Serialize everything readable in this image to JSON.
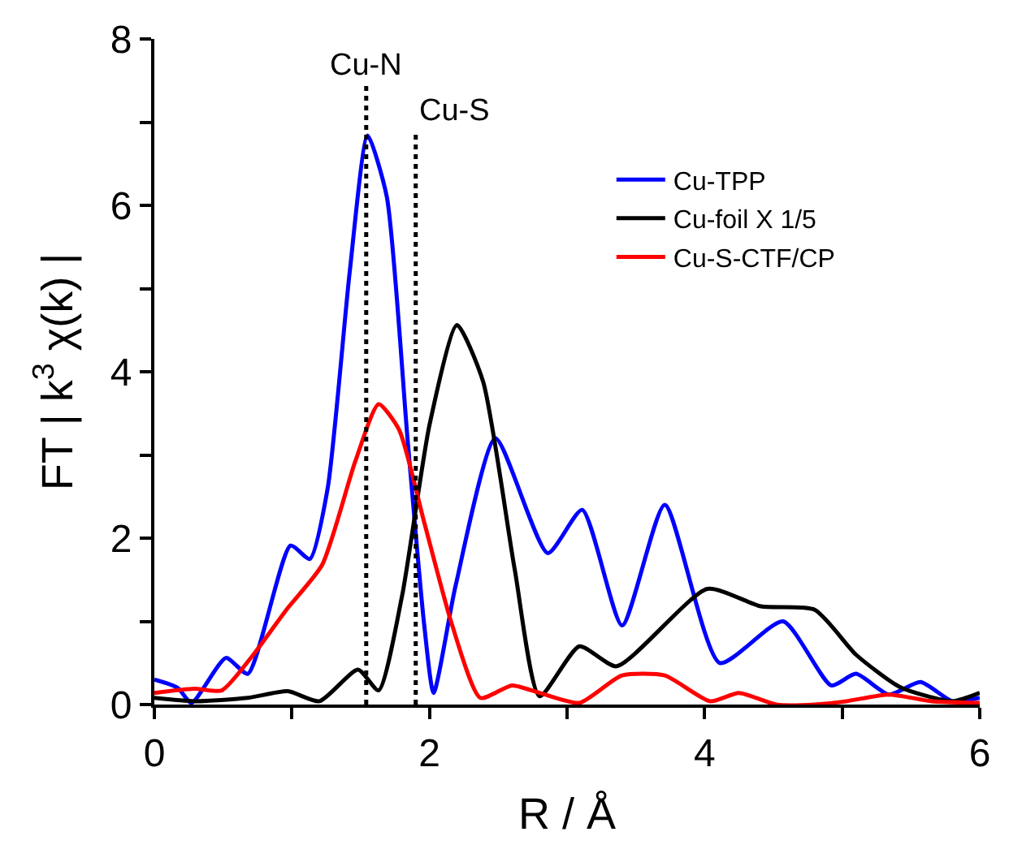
{
  "chart_data": {
    "type": "line",
    "xlabel": "R / Å",
    "ylabel": "FT | k$^{3}$ χ(k) |",
    "xlim": [
      0,
      6
    ],
    "ylim": [
      0,
      8
    ],
    "xticks": [
      0,
      {
        "value": 1,
        "label": null
      },
      2,
      {
        "value": 3,
        "label": null
      },
      4,
      {
        "value": 5,
        "label": null
      },
      6
    ],
    "yticks": [
      0,
      {
        "value": 1,
        "label": null
      },
      2,
      {
        "value": 3,
        "label": null
      },
      4,
      {
        "value": 5,
        "label": null
      },
      6,
      {
        "value": 7,
        "label": null
      },
      8
    ],
    "legend": "top right",
    "line_style": "solid",
    "marker": "none",
    "ref_lines": [
      {
        "axis": "x",
        "value": 1.54,
        "label": "Cu-N",
        "color": "#000000",
        "line_style": "dotted"
      },
      {
        "axis": "x",
        "value": 1.9,
        "label": "Cu-S",
        "color": "#000000",
        "line_style": "dotted"
      }
    ],
    "series": [
      {
        "name": "Cu-TPP",
        "color": "#0000ff",
        "x": [
          0,
          0.17,
          0.27,
          0.52,
          0.68,
          0.99,
          1.13,
          1.26,
          1.42,
          1.55,
          1.69,
          1.84,
          1.96,
          2.03,
          2.19,
          2.48,
          2.86,
          3.11,
          3.4,
          3.71,
          4.11,
          4.57,
          4.92,
          5.1,
          5.34,
          5.57,
          5.8,
          6
        ],
        "values": [
          0.3,
          0.2,
          0.02,
          0.56,
          0.37,
          1.91,
          1.75,
          2.6,
          5.2,
          6.84,
          6.1,
          3.2,
          0.98,
          0.14,
          1.43,
          3.2,
          1.82,
          2.34,
          0.95,
          2.4,
          0.5,
          1.0,
          0.23,
          0.37,
          0.12,
          0.27,
          0.04,
          0.08
        ]
      },
      {
        "name": "Cu-foil X 1/5",
        "color": "#000000",
        "x": [
          0,
          0.29,
          0.68,
          0.97,
          1.2,
          1.48,
          1.63,
          1.8,
          2.0,
          2.2,
          2.39,
          2.62,
          2.8,
          3.09,
          3.36,
          4.02,
          4.41,
          4.8,
          5.1,
          5.42,
          5.8,
          6
        ],
        "values": [
          0.08,
          0.04,
          0.08,
          0.16,
          0.04,
          0.42,
          0.17,
          1.3,
          3.36,
          4.56,
          3.88,
          1.62,
          0.1,
          0.7,
          0.46,
          1.39,
          1.18,
          1.14,
          0.6,
          0.21,
          0.04,
          0.14
        ]
      },
      {
        "name": "Cu-S-CTF/CP",
        "color": "#ff0000",
        "x": [
          0,
          0.29,
          0.49,
          0.72,
          0.96,
          1.22,
          1.46,
          1.63,
          1.78,
          1.96,
          2.16,
          2.37,
          2.6,
          2.8,
          3.09,
          3.4,
          3.71,
          4.04,
          4.25,
          4.52,
          4.8,
          5.03,
          5.34,
          5.65,
          6
        ],
        "values": [
          0.14,
          0.19,
          0.17,
          0.6,
          1.14,
          1.68,
          2.92,
          3.61,
          3.3,
          2.2,
          0.98,
          0.08,
          0.23,
          0.14,
          0.02,
          0.35,
          0.35,
          0.04,
          0.14,
          0.0,
          0.0,
          0.04,
          0.12,
          0.04,
          0.02
        ]
      }
    ]
  }
}
